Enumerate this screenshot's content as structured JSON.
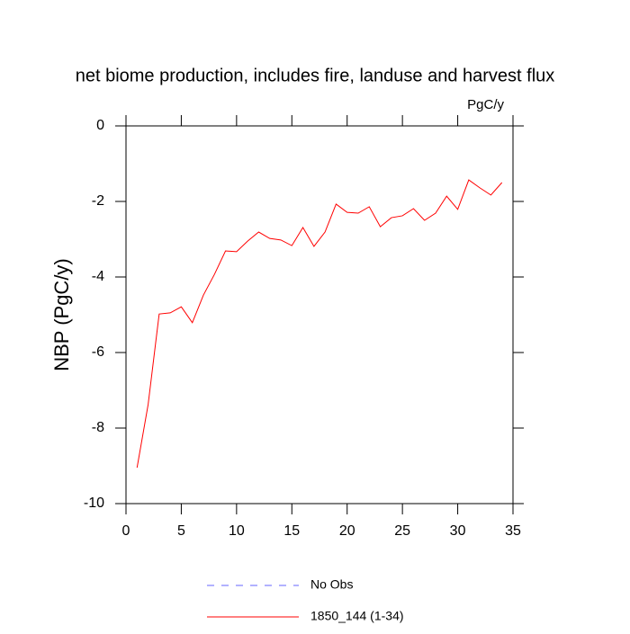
{
  "chart_data": {
    "type": "line",
    "title": "net biome production, includes fire, landuse and harvest flux",
    "subtitle": "PgC/y",
    "y_label": "NBP  (PgC/y)",
    "x": [
      1,
      2,
      3,
      4,
      5,
      6,
      7,
      8,
      9,
      10,
      11,
      12,
      13,
      14,
      15,
      16,
      17,
      18,
      19,
      20,
      21,
      22,
      23,
      24,
      25,
      26,
      27,
      28,
      29,
      30,
      31,
      32,
      33,
      34
    ],
    "series": [
      {
        "name": "No Obs",
        "color": "#6666ff",
        "dashed": true,
        "values": [
          null,
          null,
          null,
          null,
          null,
          null,
          null,
          null,
          null,
          null,
          null,
          null,
          null,
          null,
          null,
          null,
          null,
          null,
          null,
          null,
          null,
          null,
          null,
          null,
          null,
          null,
          null,
          null,
          null,
          null,
          null,
          null,
          null,
          null
        ]
      },
      {
        "name": "1850_144 (1-34)",
        "color": "#ff0000",
        "dashed": false,
        "values": [
          -9.05,
          -7.38,
          -4.98,
          -4.95,
          -4.79,
          -5.21,
          -4.48,
          -3.93,
          -3.31,
          -3.33,
          -3.05,
          -2.81,
          -2.98,
          -3.02,
          -3.17,
          -2.69,
          -3.19,
          -2.81,
          -2.07,
          -2.29,
          -2.31,
          -2.14,
          -2.67,
          -2.43,
          -2.38,
          -2.19,
          -2.5,
          -2.31,
          -1.86,
          -2.21,
          -1.43,
          -1.64,
          -1.83,
          -1.5
        ]
      }
    ],
    "xlim": [
      0,
      35
    ],
    "xticks": [
      0,
      5,
      10,
      15,
      20,
      25,
      30,
      35
    ],
    "ylim": [
      -10,
      0
    ],
    "yticks": [
      -10,
      -8,
      -6,
      -4,
      -2,
      0
    ],
    "grid": false
  }
}
